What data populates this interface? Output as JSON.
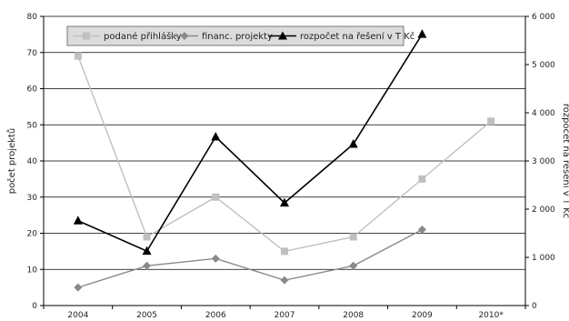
{
  "chart_data": {
    "type": "line",
    "categories": [
      "2004",
      "2005",
      "2006",
      "2007",
      "2008",
      "2009",
      "2010*"
    ],
    "ylabel_left": "počet projektů",
    "ylabel_right": "rozpočet na řešení v T Kč",
    "ylim_left": [
      0,
      80
    ],
    "ylim_right": [
      0,
      6000
    ],
    "yticks_left": [
      "0",
      "10",
      "20",
      "30",
      "40",
      "50",
      "60",
      "70",
      "80"
    ],
    "yticks_right": [
      "0",
      "1 000",
      "2 000",
      "3 000",
      "4 000",
      "5 000",
      "6 000"
    ],
    "grid": true,
    "legend_position": "top",
    "series": [
      {
        "name": "podané přihlášky",
        "axis": "left",
        "marker": "square",
        "color": "#c0c0c0",
        "values": [
          69,
          19,
          30,
          15,
          19,
          35,
          51
        ]
      },
      {
        "name": "financ. projekty",
        "axis": "left",
        "marker": "diamond",
        "color": "#8a8a8a",
        "values": [
          5,
          11,
          13,
          7,
          11,
          21,
          null
        ]
      },
      {
        "name": "rozpočet na řešení v T Kč",
        "axis": "right",
        "marker": "triangle",
        "color": "#000000",
        "values": [
          1760,
          1130,
          3500,
          2130,
          3350,
          5630,
          null
        ]
      }
    ]
  }
}
